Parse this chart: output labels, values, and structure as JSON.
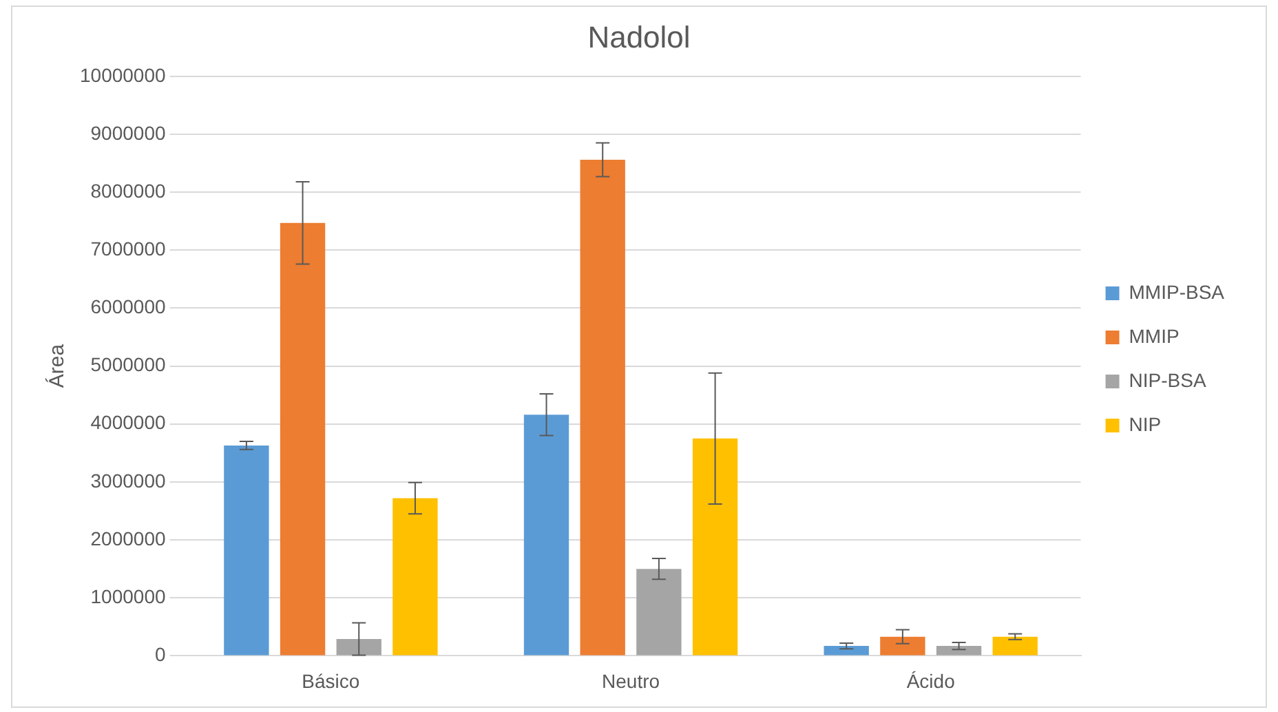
{
  "chart_data": {
    "type": "bar",
    "title": "Nadolol",
    "ylabel": "Área",
    "categories": [
      "Básico",
      "Neutro",
      "Ácido"
    ],
    "series": [
      {
        "name": "MMIP-BSA",
        "color": "#5b9bd5",
        "values": [
          3630000,
          4160000,
          170000
        ],
        "errors": [
          70000,
          360000,
          50000
        ]
      },
      {
        "name": "MMIP",
        "color": "#ed7d31",
        "values": [
          7470000,
          8560000,
          330000
        ],
        "errors": [
          710000,
          290000,
          120000
        ]
      },
      {
        "name": "NIP-BSA",
        "color": "#a5a5a5",
        "values": [
          290000,
          1500000,
          170000
        ],
        "errors": [
          280000,
          180000,
          60000
        ]
      },
      {
        "name": "NIP",
        "color": "#ffc000",
        "values": [
          2720000,
          3750000,
          330000
        ],
        "errors": [
          270000,
          1130000,
          50000
        ]
      }
    ],
    "ylim": [
      0,
      10000000
    ],
    "yticks": [
      0,
      1000000,
      2000000,
      3000000,
      4000000,
      5000000,
      6000000,
      7000000,
      8000000,
      9000000,
      10000000
    ],
    "grid": "y",
    "legend": "right"
  }
}
